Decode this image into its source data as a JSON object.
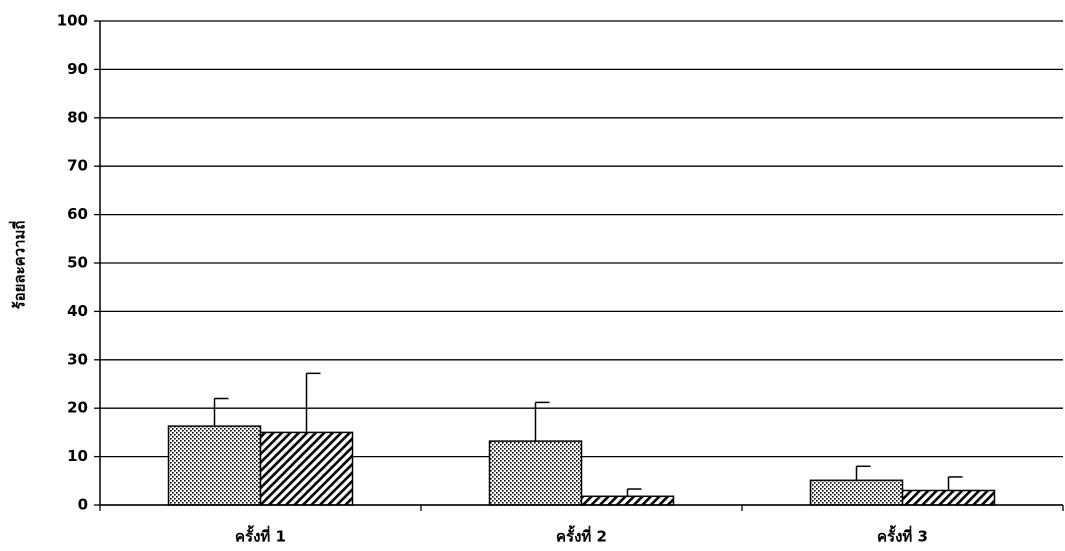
{
  "chart_data": {
    "type": "bar",
    "y_label": "ร้อยละความถี่",
    "categories": [
      "ครั้งที่ 1",
      "ครั้งที่ 2",
      "ครั้งที่ 3"
    ],
    "series": [
      {
        "color": "#000000",
        "pattern": "dots",
        "values": [
          16.3,
          13.2,
          5.1
        ],
        "errors": [
          5.7,
          8,
          2.9
        ]
      },
      {
        "color": "#000000",
        "pattern": "hatch",
        "values": [
          15,
          1.8,
          3
        ],
        "errors": [
          12.2,
          1.5,
          2.8
        ]
      }
    ],
    "ylim": [
      0,
      100
    ],
    "yticks": [
      0,
      10,
      20,
      30,
      40,
      50,
      60,
      70,
      80,
      90,
      100
    ],
    "grid": true
  }
}
